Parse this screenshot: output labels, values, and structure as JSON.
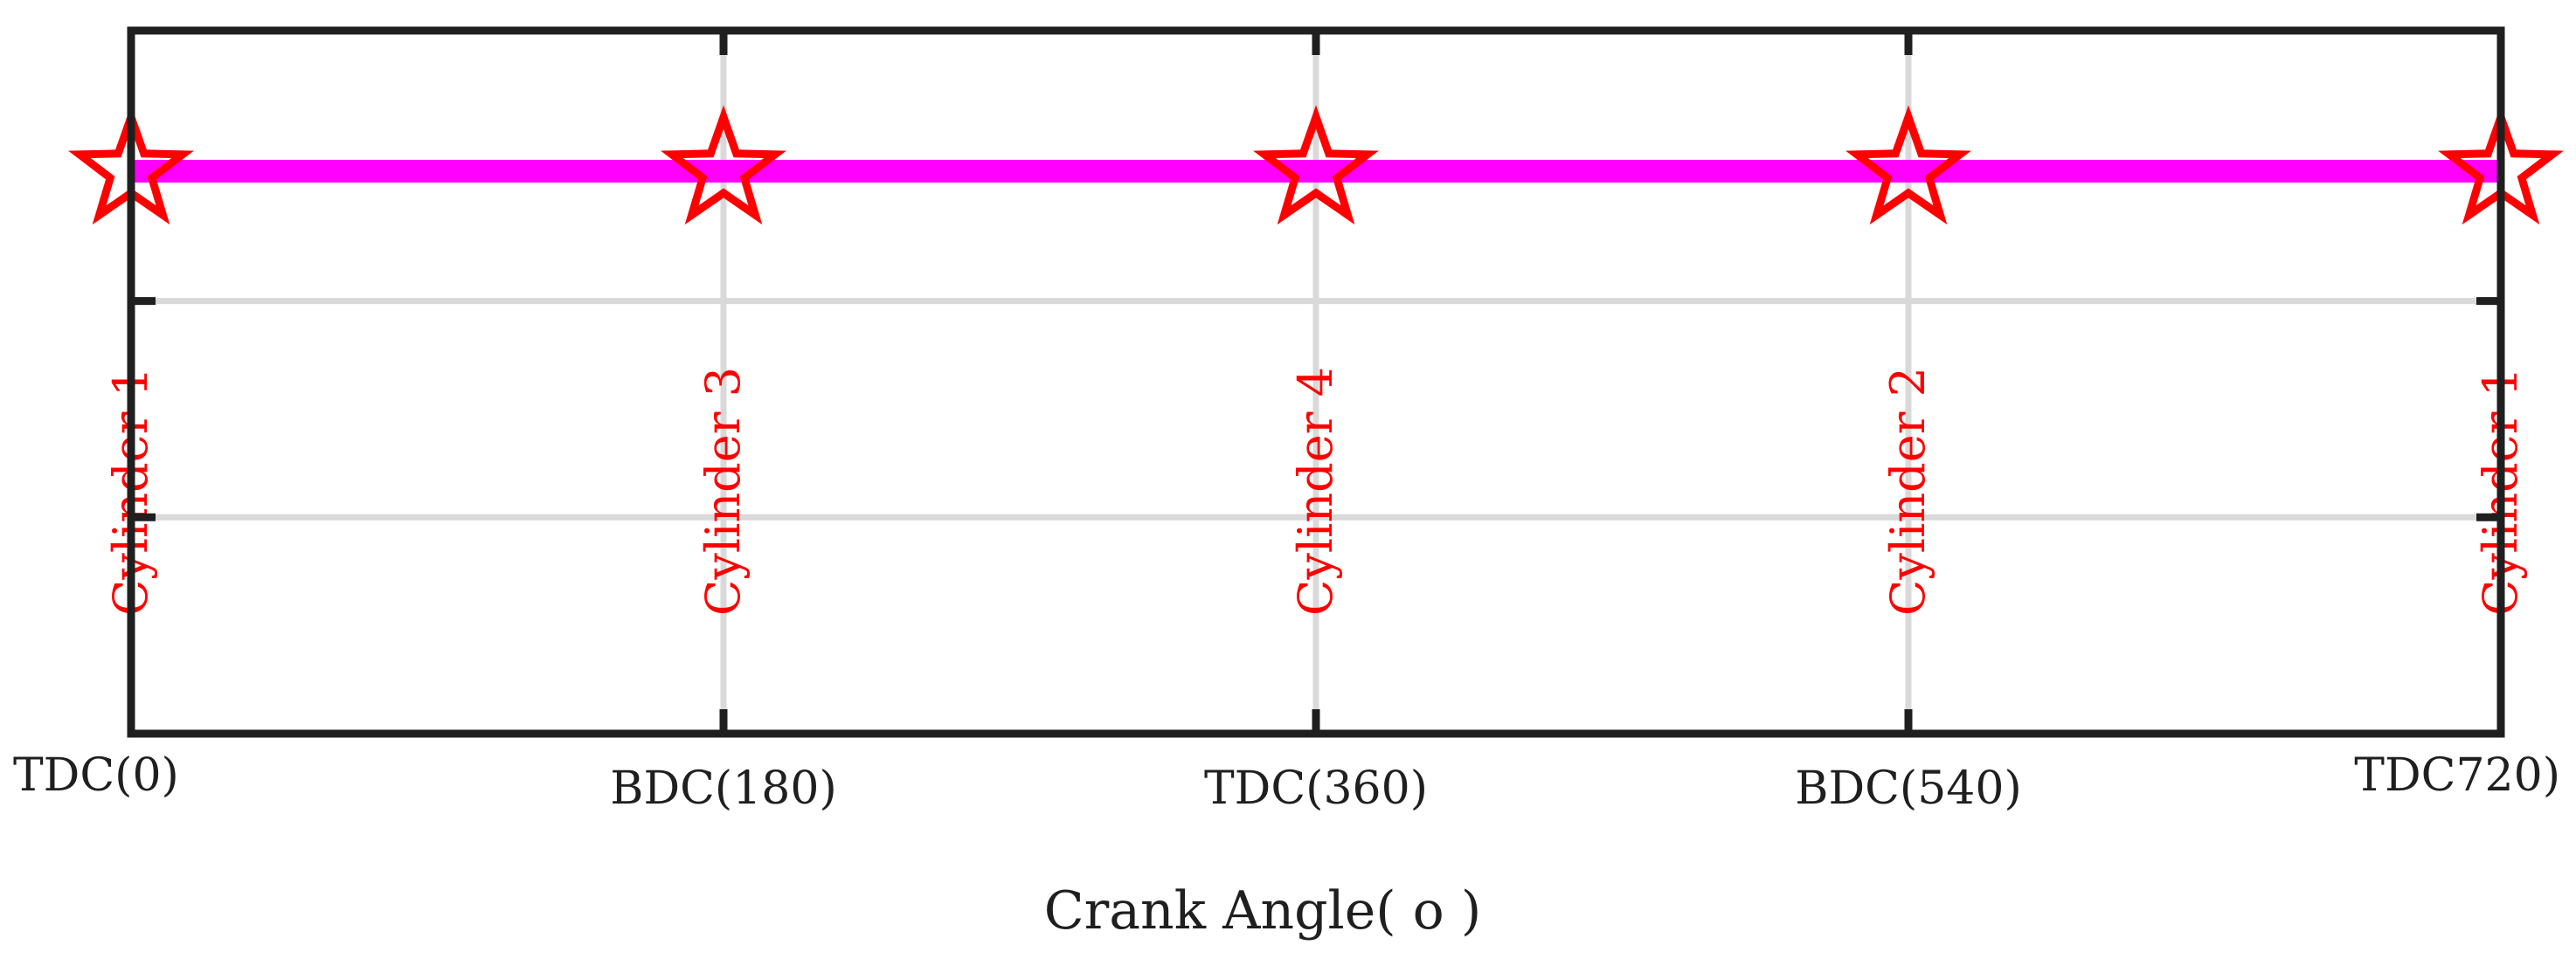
{
  "chart_data": {
    "type": "scatter",
    "title": "",
    "xlabel": "Crank Angle( o )",
    "ylabel": "",
    "xlim": [
      0,
      720
    ],
    "ylim": [
      0,
      3.25
    ],
    "grid": true,
    "x_ticks": [
      {
        "value": 0,
        "label": "TDC(0)"
      },
      {
        "value": 180,
        "label": "BDC(180)"
      },
      {
        "value": 360,
        "label": "TDC(360)"
      },
      {
        "value": 540,
        "label": "BDC(540)"
      },
      {
        "value": 720,
        "label": "TDC720)"
      }
    ],
    "y_ticks": [
      1,
      2
    ],
    "series": [
      {
        "marker": "star",
        "line_color": "#ff00ff",
        "marker_color": "#ff0000",
        "x": [
          0,
          180,
          360,
          540,
          720
        ],
        "y": [
          2.6,
          2.6,
          2.6,
          2.6,
          2.6
        ],
        "labels": [
          "Cylinder 1",
          "Cylinder 3",
          "Cylinder 4",
          "Cylinder 2",
          "Cylinder 1"
        ]
      }
    ],
    "colors": {
      "frame": "#1f1f1f",
      "grid": "#d9d9d9",
      "line": "#ff00ff",
      "marker": "#ff0000",
      "label": "#ff0000"
    }
  }
}
